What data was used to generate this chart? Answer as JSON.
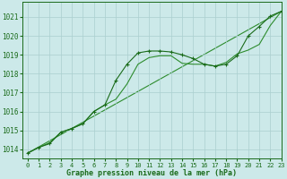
{
  "bg_color": "#cce9e9",
  "grid_color": "#aacfcf",
  "line_color1": "#1a6b1a",
  "line_color2": "#2d8c2d",
  "xlim": [
    -0.5,
    23
  ],
  "ylim": [
    1013.5,
    1021.8
  ],
  "yticks": [
    1014,
    1015,
    1016,
    1017,
    1018,
    1019,
    1020,
    1021
  ],
  "xticks": [
    0,
    1,
    2,
    3,
    4,
    5,
    6,
    7,
    8,
    9,
    10,
    11,
    12,
    13,
    14,
    15,
    16,
    17,
    18,
    19,
    20,
    21,
    22,
    23
  ],
  "series1_x": [
    0,
    1,
    2,
    3,
    4,
    5,
    6,
    7,
    8,
    9,
    10,
    11,
    12,
    13,
    14,
    15,
    16,
    17,
    18,
    19,
    20,
    21,
    22,
    23
  ],
  "series1_y": [
    1013.8,
    1014.1,
    1014.3,
    1014.9,
    1015.1,
    1015.35,
    1016.0,
    1016.35,
    1017.65,
    1018.5,
    1019.1,
    1019.2,
    1019.2,
    1019.15,
    1019.0,
    1018.8,
    1018.5,
    1018.4,
    1018.5,
    1018.95,
    1020.0,
    1020.5,
    1021.05,
    1021.3
  ],
  "series2_x": [
    0,
    1,
    2,
    3,
    4,
    5,
    6,
    7,
    8,
    9,
    10,
    11,
    12,
    13,
    14,
    15,
    16,
    17,
    18,
    19,
    20,
    21,
    22,
    23
  ],
  "series2_y": [
    1013.8,
    1014.1,
    1014.35,
    1014.9,
    1015.1,
    1015.35,
    1016.0,
    1016.35,
    1016.65,
    1017.45,
    1018.5,
    1018.85,
    1018.95,
    1018.95,
    1018.55,
    1018.5,
    1018.5,
    1018.4,
    1018.6,
    1019.05,
    1019.25,
    1019.55,
    1020.55,
    1021.3
  ],
  "series3_x": [
    0,
    23
  ],
  "series3_y": [
    1013.8,
    1021.3
  ],
  "xlabel": "Graphe pression niveau de la mer (hPa)",
  "xlabel_fontsize": 6,
  "tick_fontsize": 5,
  "ytick_fontsize": 5.5
}
